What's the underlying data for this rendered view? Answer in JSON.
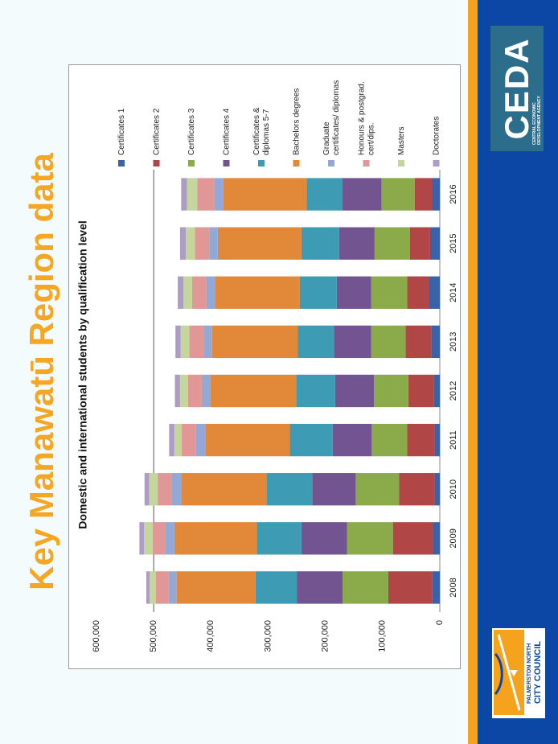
{
  "slide": {
    "title": "Key Manawatū Region data"
  },
  "logos": {
    "ceda": {
      "word": "CEDA",
      "tagline_1": "CENTRAL ECONOMIC",
      "tagline_2": "DEVELOPMENT AGENCY"
    },
    "pncc": {
      "line1": "PALMERSTON NORTH",
      "line2": "CITY COUNCIL"
    }
  },
  "colors": {
    "title": "#f5a623",
    "orange_band": "#f5a21d",
    "blue_band": "#0d47a6",
    "ceda_bg": "#2c6d8c",
    "series": [
      "#3a62a6",
      "#b04645",
      "#8bab4b",
      "#725490",
      "#3d9bb3",
      "#e28839",
      "#93a8d5",
      "#e09796",
      "#c4d69b",
      "#ad9cc5"
    ]
  },
  "chart_data": {
    "type": "bar",
    "stacked": true,
    "orientation": "vertical",
    "title": "Domestic and international students by qualification level",
    "categories": [
      "2008",
      "2009",
      "2010",
      "2011",
      "2012",
      "2013",
      "2014",
      "2015",
      "2016"
    ],
    "y_ticks": [
      "0",
      "100,000",
      "200,000",
      "300,000",
      "400,000",
      "500,000",
      "600,000"
    ],
    "ylim": [
      0,
      600000
    ],
    "gridlines": [
      500000
    ],
    "legend_position": "right",
    "series": [
      {
        "name": "Certificates 1",
        "values": [
          13000,
          12000,
          9000,
          9000,
          10000,
          15000,
          19000,
          17000,
          14000
        ]
      },
      {
        "name": "Certificates 2",
        "values": [
          77000,
          70000,
          62000,
          48000,
          45000,
          45000,
          38000,
          35000,
          30000
        ]
      },
      {
        "name": "Certificates 3",
        "values": [
          80000,
          80000,
          76000,
          62000,
          60000,
          60000,
          63000,
          62000,
          58000
        ]
      },
      {
        "name": "Certificates 4",
        "values": [
          80000,
          80000,
          76000,
          68000,
          68000,
          65000,
          60000,
          62000,
          68000
        ]
      },
      {
        "name": "Certificates & diplomas 5-7",
        "values": [
          72000,
          78000,
          80000,
          75000,
          68000,
          63000,
          65000,
          66000,
          63000
        ]
      },
      {
        "name": "Bachelors degrees",
        "values": [
          138000,
          144000,
          148000,
          148000,
          150000,
          150000,
          148000,
          146000,
          146000
        ]
      },
      {
        "name": "Graduate certificates/ diplomas",
        "values": [
          14000,
          16000,
          17000,
          16000,
          15000,
          15000,
          15000,
          15000,
          15000
        ]
      },
      {
        "name": "Honours & postgrad. cert/dips.",
        "values": [
          22000,
          22000,
          25000,
          25000,
          24000,
          25000,
          25000,
          25000,
          30000
        ]
      },
      {
        "name": "Masters",
        "values": [
          11000,
          15000,
          15000,
          13000,
          14000,
          15000,
          15000,
          16000,
          18000
        ]
      },
      {
        "name": "Doctorates",
        "values": [
          6000,
          8000,
          8000,
          9000,
          9000,
          9000,
          10000,
          10000,
          10000
        ]
      }
    ]
  }
}
